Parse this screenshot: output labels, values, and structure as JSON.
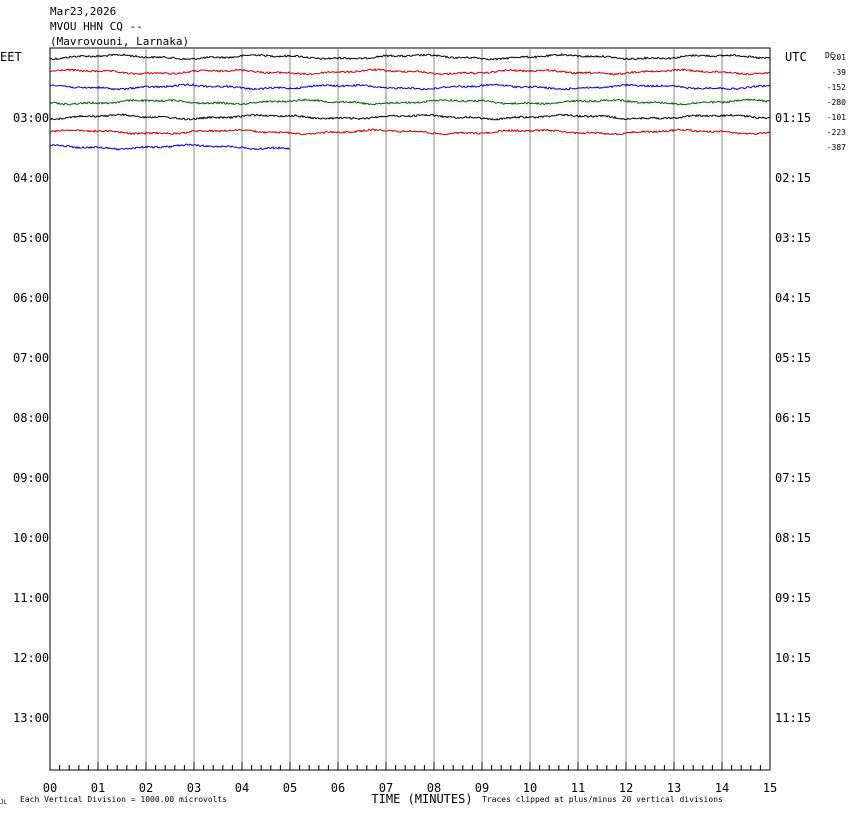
{
  "header": {
    "date": "Mar23,2026",
    "station": "MVOU HHN CQ --",
    "location": "(Mavrovouni, Larnaka)"
  },
  "labels": {
    "left_tz": "EET",
    "right_tz": "UTC",
    "dc_label": "DC",
    "xlabel": "TIME (MINUTES)",
    "scale_note": "Each Vertical Division = 1000.00 microvolts",
    "clip_note": "Traces clipped at plus/minus 20 vertical divisions",
    "corner_mark": "JL"
  },
  "chart_data": {
    "type": "line",
    "title": "MVOU HHN CQ --",
    "xlabel": "TIME (MINUTES)",
    "xlim": [
      0,
      15
    ],
    "x_ticks": [
      "00",
      "01",
      "02",
      "03",
      "04",
      "05",
      "06",
      "07",
      "08",
      "09",
      "10",
      "11",
      "12",
      "13",
      "14",
      "15"
    ],
    "left_hour_labels": [
      "03:00",
      "04:00",
      "05:00",
      "06:00",
      "07:00",
      "08:00",
      "09:00",
      "10:00",
      "11:00",
      "12:00",
      "13:00"
    ],
    "right_hour_labels": [
      "01:15",
      "02:15",
      "03:15",
      "04:15",
      "05:15",
      "06:15",
      "07:15",
      "08:15",
      "09:15",
      "10:15",
      "11:15"
    ],
    "series": [
      {
        "dc": "201",
        "color": "#000000",
        "start_minute": 0,
        "end_minute": 15
      },
      {
        "dc": "-39",
        "color": "#cc0000",
        "start_minute": 0,
        "end_minute": 15
      },
      {
        "dc": "-152",
        "color": "#0000cc",
        "start_minute": 0,
        "end_minute": 15
      },
      {
        "dc": "-280",
        "color": "#006600",
        "start_minute": 0,
        "end_minute": 15
      },
      {
        "dc": "-101",
        "color": "#000000",
        "start_minute": 0,
        "end_minute": 15
      },
      {
        "dc": "-223",
        "color": "#cc0000",
        "start_minute": 0,
        "end_minute": 15
      },
      {
        "dc": "-387",
        "color": "#0000cc",
        "start_minute": 0,
        "end_minute": 5
      }
    ]
  }
}
